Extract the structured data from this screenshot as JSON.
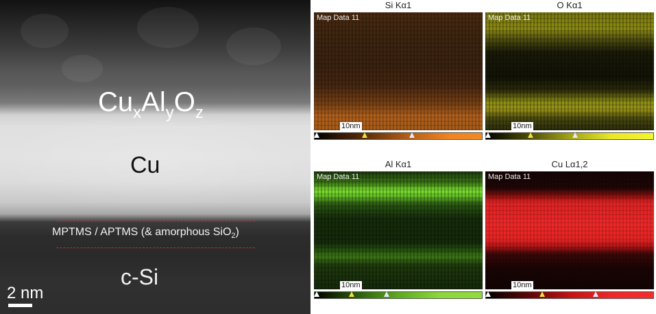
{
  "micrograph": {
    "layer_top_base": "Cu",
    "layer_top_x": "x",
    "layer_top_al": "Al",
    "layer_top_y": "y",
    "layer_top_o": "O",
    "layer_top_z": "z",
    "layer_middle": "Cu",
    "interface_main": "MPTMS / APTMS (& amorphous SiO",
    "interface_sub": "2",
    "interface_end": ")",
    "layer_bottom": "c-Si",
    "scale_bar": "2 nm",
    "interface_line_color": "#d02828"
  },
  "eds_maps": [
    {
      "title": "Si Kα1",
      "tag": "Map Data 11",
      "scale": "10nm",
      "color": "#f08a26"
    },
    {
      "title": "O Kα1",
      "tag": "Map Data 11",
      "scale": "10nm",
      "color": "#f4f430"
    },
    {
      "title": "Al Kα1",
      "tag": "Map Data 11",
      "scale": "10nm",
      "color": "#90dc3c"
    },
    {
      "title": "Cu Lα1,2",
      "tag": "Map Data 11",
      "scale": "10nm",
      "color": "#f42c2c"
    }
  ]
}
